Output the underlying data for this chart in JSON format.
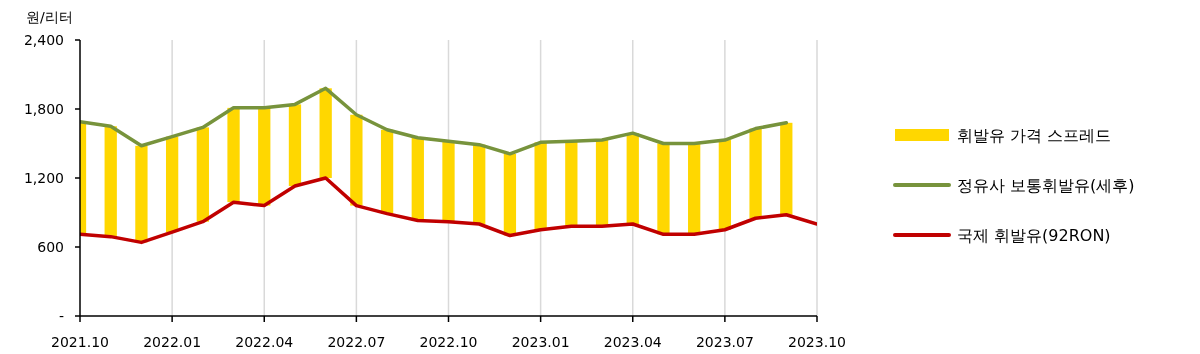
{
  "chart_data": {
    "type": "line",
    "ylabel": "원/리터",
    "x": [
      "2021-10",
      "2021-11",
      "2021-12",
      "2022-01",
      "2022-02",
      "2022-03",
      "2022-04",
      "2022-05",
      "2022-06",
      "2022-07",
      "2022-08",
      "2022-09",
      "2022-10",
      "2022-11",
      "2022-12",
      "2023-01",
      "2023-02",
      "2023-03",
      "2023-04",
      "2023-05",
      "2023-06",
      "2023-07",
      "2023-08",
      "2023-09",
      "2023-10"
    ],
    "series": [
      {
        "name": "휘발유 가격 스프레드",
        "type": "bar",
        "color": "#ffd700",
        "base": [
          710,
          690,
          640,
          730,
          820,
          990,
          960,
          1130,
          1200,
          960,
          890,
          830,
          820,
          800,
          700,
          750,
          780,
          780,
          800,
          710,
          710,
          750,
          850,
          880,
          null
        ],
        "values": [
          980,
          960,
          840,
          830,
          820,
          820,
          850,
          710,
          780,
          790,
          730,
          720,
          700,
          690,
          710,
          760,
          740,
          750,
          790,
          790,
          790,
          780,
          780,
          800,
          null
        ]
      },
      {
        "name": "정유사 보통휘발유(세후)",
        "color": "#77933c",
        "values": [
          1690,
          1650,
          1480,
          1560,
          1640,
          1810,
          1810,
          1840,
          1980,
          1750,
          1620,
          1550,
          1520,
          1490,
          1410,
          1510,
          1520,
          1530,
          1590,
          1500,
          1500,
          1530,
          1630,
          1680,
          null
        ]
      },
      {
        "name": "국제 휘발유(92RON)",
        "color": "#c00000",
        "values": [
          710,
          690,
          640,
          730,
          820,
          990,
          960,
          1130,
          1200,
          960,
          890,
          830,
          820,
          800,
          700,
          750,
          780,
          780,
          800,
          710,
          710,
          750,
          850,
          880,
          800
        ]
      }
    ],
    "xlim": [
      "2021-10",
      "2023-10"
    ],
    "xticks": [
      {
        "value": "2021-10",
        "label": "2021.10"
      },
      {
        "value": "2022-01",
        "label": "2022.01"
      },
      {
        "value": "2022-04",
        "label": "2022.04"
      },
      {
        "value": "2022-07",
        "label": "2022.07"
      },
      {
        "value": "2022-10",
        "label": "2022.10"
      },
      {
        "value": "2023-01",
        "label": "2023.01"
      },
      {
        "value": "2023-04",
        "label": "2023.04"
      },
      {
        "value": "2023-07",
        "label": "2023.07"
      },
      {
        "value": "2023-10",
        "label": "2023.10"
      }
    ],
    "ylim": [
      0,
      2400
    ],
    "yticks": [
      {
        "value": 0,
        "label": "-"
      },
      600,
      {
        "value": 1200,
        "label": "1,200"
      },
      {
        "value": 1800,
        "label": "1,800"
      },
      {
        "value": 2400,
        "label": "2,400"
      }
    ],
    "grid": "x",
    "legend": "right"
  }
}
